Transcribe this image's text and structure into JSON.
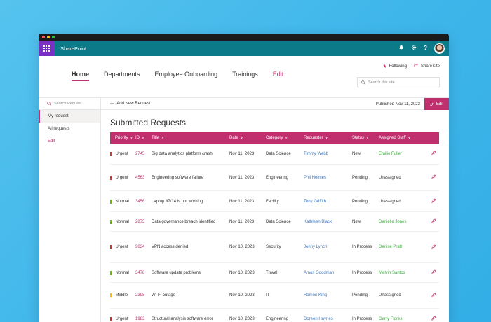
{
  "suitebar": {
    "app_name": "SharePoint",
    "icons": [
      "bell-icon",
      "gear-icon",
      "help-icon"
    ],
    "help_glyph": "?",
    "bell_glyph": "🔔",
    "gear_glyph": "⚙"
  },
  "site_header": {
    "nav": [
      {
        "label": "Home",
        "active": true
      },
      {
        "label": "Departments",
        "active": false
      },
      {
        "label": "Employee Onboarding",
        "active": false
      },
      {
        "label": "Trainings",
        "active": false
      },
      {
        "label": "Edit",
        "active": false
      }
    ],
    "following_label": "Following",
    "share_label": "Share site",
    "search_placeholder": "Search this site"
  },
  "left_nav": {
    "search_placeholder": "Search Request",
    "items": [
      {
        "label": "My request",
        "active": true
      },
      {
        "label": "All requests",
        "active": false
      },
      {
        "label": "Edit",
        "active": false
      }
    ]
  },
  "command_bar": {
    "add_label": "Add New Request",
    "published": "Published Nov 11, 2023",
    "edit_label": "Edit"
  },
  "page": {
    "title": "Submitted Requests"
  },
  "table": {
    "columns": [
      "Priority",
      "ID",
      "Title",
      "Date",
      "Category",
      "Requester",
      "Status",
      "Assigned Staff"
    ],
    "rows": [
      {
        "priority": "Urgent",
        "priority_color": "#d13438",
        "id": "2745",
        "title": "Big data analytics platform crash",
        "date": "Nov 11, 2023",
        "category": "Data Science",
        "requester": "Timmy Webb",
        "status": "New",
        "staff": "Emilio Fuller",
        "staff_assigned": true,
        "height": 30
      },
      {
        "priority": "Urgent",
        "priority_color": "#d13438",
        "id": "4563",
        "title": "Engineering software failure",
        "date": "Nov 11, 2023",
        "category": "Engineering",
        "requester": "Phil Holmes",
        "status": "Pending",
        "staff": "Unassigned",
        "staff_assigned": false,
        "height": 38
      },
      {
        "priority": "Normal",
        "priority_color": "#6bb700",
        "id": "3456",
        "title": "Laptop #7/14 is not working",
        "date": "Nov 11, 2023",
        "category": "Facility",
        "requester": "Tony Griffith",
        "status": "Pending",
        "staff": "Unassigned",
        "staff_assigned": false,
        "height": 30
      },
      {
        "priority": "Normal",
        "priority_color": "#6bb700",
        "id": "2873",
        "title": "Data governance breach identified",
        "date": "Nov 11, 2023",
        "category": "Data Science",
        "requester": "Kathleen Black",
        "status": "New",
        "staff": "Danielle Jones",
        "staff_assigned": true,
        "height": 28
      },
      {
        "priority": "Urgent",
        "priority_color": "#d13438",
        "id": "9834",
        "title": "VPN access denied",
        "date": "Nov 10, 2023",
        "category": "Security",
        "requester": "Jenny Lynch",
        "status": "In Process",
        "staff": "Denise Pratt",
        "staff_assigned": true,
        "height": 45
      },
      {
        "priority": "Normal",
        "priority_color": "#6bb700",
        "id": "3478",
        "title": "Software update problems",
        "date": "Nov 10, 2023",
        "category": "Travel",
        "requester": "Amos Goodman",
        "status": "In Process",
        "staff": "Melvin Santos",
        "staff_assigned": true,
        "height": 28
      },
      {
        "priority": "Middle",
        "priority_color": "#ffb900",
        "id": "2398",
        "title": "Wi-Fi outage",
        "date": "Nov 10, 2023",
        "category": "IT",
        "requester": "Ramon King",
        "status": "Pending",
        "staff": "Unassigned",
        "staff_assigned": false,
        "height": 37
      },
      {
        "priority": "Urgent",
        "priority_color": "#d13438",
        "id": "1983",
        "title": "Structural analysis software error",
        "date": "Nov 10, 2023",
        "category": "Engineering",
        "requester": "Doreen Haynes",
        "status": "In Process",
        "staff": "Garry Flores",
        "staff_assigned": true,
        "height": 30
      }
    ]
  },
  "colors": {
    "accent": "#c0306e",
    "suitebar": "#0d7a8a",
    "waffle": "#7a2fc5",
    "link_blue": "#3b78c3",
    "assigned_green": "#3fae3d"
  }
}
